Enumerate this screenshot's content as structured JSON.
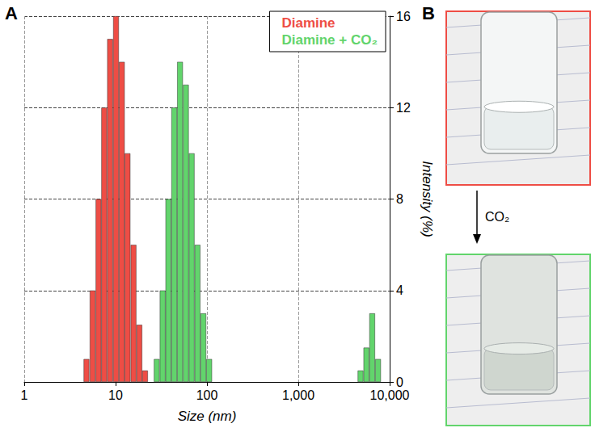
{
  "chart_data": {
    "type": "bar",
    "x": [
      4.8,
      5.6,
      6.5,
      7.5,
      8.7,
      10.1,
      11.7,
      13.5,
      15.7,
      18.2,
      21,
      24.4,
      28.2,
      32.7,
      37.8,
      43.8,
      50.7,
      58.8,
      68,
      78.8,
      91.3,
      105.7,
      4800,
      5560,
      6440,
      7460
    ],
    "series": [
      {
        "name": "Diamine",
        "color": "#ee4d45",
        "values": [
          1,
          4,
          8,
          12,
          15,
          16,
          14,
          10,
          6,
          2.5,
          0.5,
          null,
          null,
          null,
          null,
          null,
          null,
          null,
          null,
          null,
          null,
          null,
          null,
          null,
          null,
          null
        ]
      },
      {
        "name": "Diamine + CO₂",
        "color": "#62d46c",
        "values": [
          null,
          null,
          null,
          null,
          null,
          null,
          null,
          null,
          null,
          null,
          null,
          null,
          1,
          4,
          8,
          12,
          14,
          13,
          10,
          6,
          3,
          1,
          0.5,
          1.5,
          3,
          1
        ]
      }
    ],
    "xlabel": "Size (nm)",
    "ylabel": "Intensity (%)",
    "xlim": [
      1,
      10000
    ],
    "xticks": [
      1,
      10,
      100,
      {
        "value": 1000,
        "label": "1,000"
      },
      {
        "value": 10000,
        "label": "10,000"
      }
    ],
    "ylim": [
      0,
      16
    ],
    "yticks": [
      0,
      4,
      8,
      12,
      16
    ],
    "log": "x",
    "grid": true,
    "legend": "upper right"
  },
  "panel_labels": [
    "A",
    "B"
  ],
  "photo_arrow_label": "CO₂"
}
